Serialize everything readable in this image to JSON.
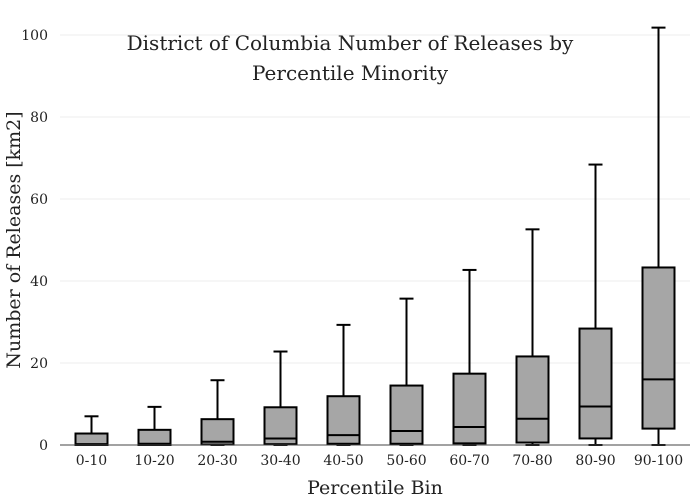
{
  "chart_data": {
    "type": "box",
    "title_lines": [
      "District of Columbia Number of Releases by",
      "Percentile Minority"
    ],
    "xlabel": "Percentile Bin",
    "ylabel": "Number of Releases  [km2]",
    "ylim": [
      0,
      103
    ],
    "yticks": [
      0,
      20,
      40,
      60,
      80,
      100
    ],
    "grid": true,
    "box_color": "#a6a6a6",
    "categories": [
      "0-10",
      "10-20",
      "20-30",
      "30-40",
      "40-50",
      "50-60",
      "60-70",
      "70-80",
      "80-90",
      "90-100"
    ],
    "boxes": [
      {
        "min": 0,
        "q1": 0,
        "median": 0.2,
        "q3": 2.8,
        "max": 7
      },
      {
        "min": 0,
        "q1": 0,
        "median": 0.3,
        "q3": 3.7,
        "max": 9.3
      },
      {
        "min": 0,
        "q1": 0.1,
        "median": 0.8,
        "q3": 6.3,
        "max": 15.8
      },
      {
        "min": 0,
        "q1": 0.2,
        "median": 1.6,
        "q3": 9.2,
        "max": 22.8
      },
      {
        "min": 0,
        "q1": 0.3,
        "median": 2.4,
        "q3": 11.9,
        "max": 29.3
      },
      {
        "min": 0,
        "q1": 0.3,
        "median": 3.4,
        "q3": 14.5,
        "max": 35.7
      },
      {
        "min": 0,
        "q1": 0.4,
        "median": 4.4,
        "q3": 17.4,
        "max": 42.7
      },
      {
        "min": 0,
        "q1": 0.6,
        "median": 6.4,
        "q3": 21.6,
        "max": 52.6
      },
      {
        "min": 0,
        "q1": 1.6,
        "median": 9.4,
        "q3": 28.4,
        "max": 68.4
      },
      {
        "min": 0,
        "q1": 4.0,
        "median": 16.0,
        "q3": 43.3,
        "max": 101.8
      }
    ]
  }
}
